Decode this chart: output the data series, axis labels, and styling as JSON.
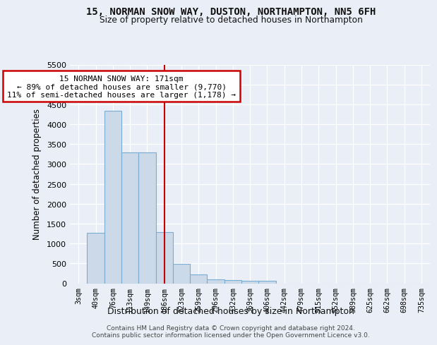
{
  "title1": "15, NORMAN SNOW WAY, DUSTON, NORTHAMPTON, NN5 6FH",
  "title2": "Size of property relative to detached houses in Northampton",
  "xlabel": "Distribution of detached houses by size in Northampton",
  "ylabel": "Number of detached properties",
  "bin_labels": [
    "3sqm",
    "40sqm",
    "76sqm",
    "113sqm",
    "149sqm",
    "186sqm",
    "223sqm",
    "259sqm",
    "296sqm",
    "332sqm",
    "369sqm",
    "406sqm",
    "442sqm",
    "479sqm",
    "515sqm",
    "552sqm",
    "589sqm",
    "625sqm",
    "662sqm",
    "698sqm",
    "735sqm"
  ],
  "bar_heights": [
    0,
    1270,
    4330,
    3300,
    3300,
    1290,
    490,
    220,
    90,
    75,
    55,
    55,
    0,
    0,
    0,
    0,
    0,
    0,
    0,
    0,
    0
  ],
  "bar_color": "#ccd9e8",
  "bar_edge_color": "#7aadd4",
  "vline_x_index": 5,
  "vline_color": "#cc0000",
  "annotation_text": "15 NORMAN SNOW WAY: 171sqm\n← 89% of detached houses are smaller (9,770)\n11% of semi-detached houses are larger (1,178) →",
  "annotation_box_color": "#ffffff",
  "annotation_box_edge": "#cc0000",
  "ylim": [
    0,
    5500
  ],
  "yticks": [
    0,
    500,
    1000,
    1500,
    2000,
    2500,
    3000,
    3500,
    4000,
    4500,
    5000,
    5500
  ],
  "bg_color": "#eaeff7",
  "grid_color": "#ffffff",
  "footnote": "Contains HM Land Registry data © Crown copyright and database right 2024.\nContains public sector information licensed under the Open Government Licence v3.0."
}
